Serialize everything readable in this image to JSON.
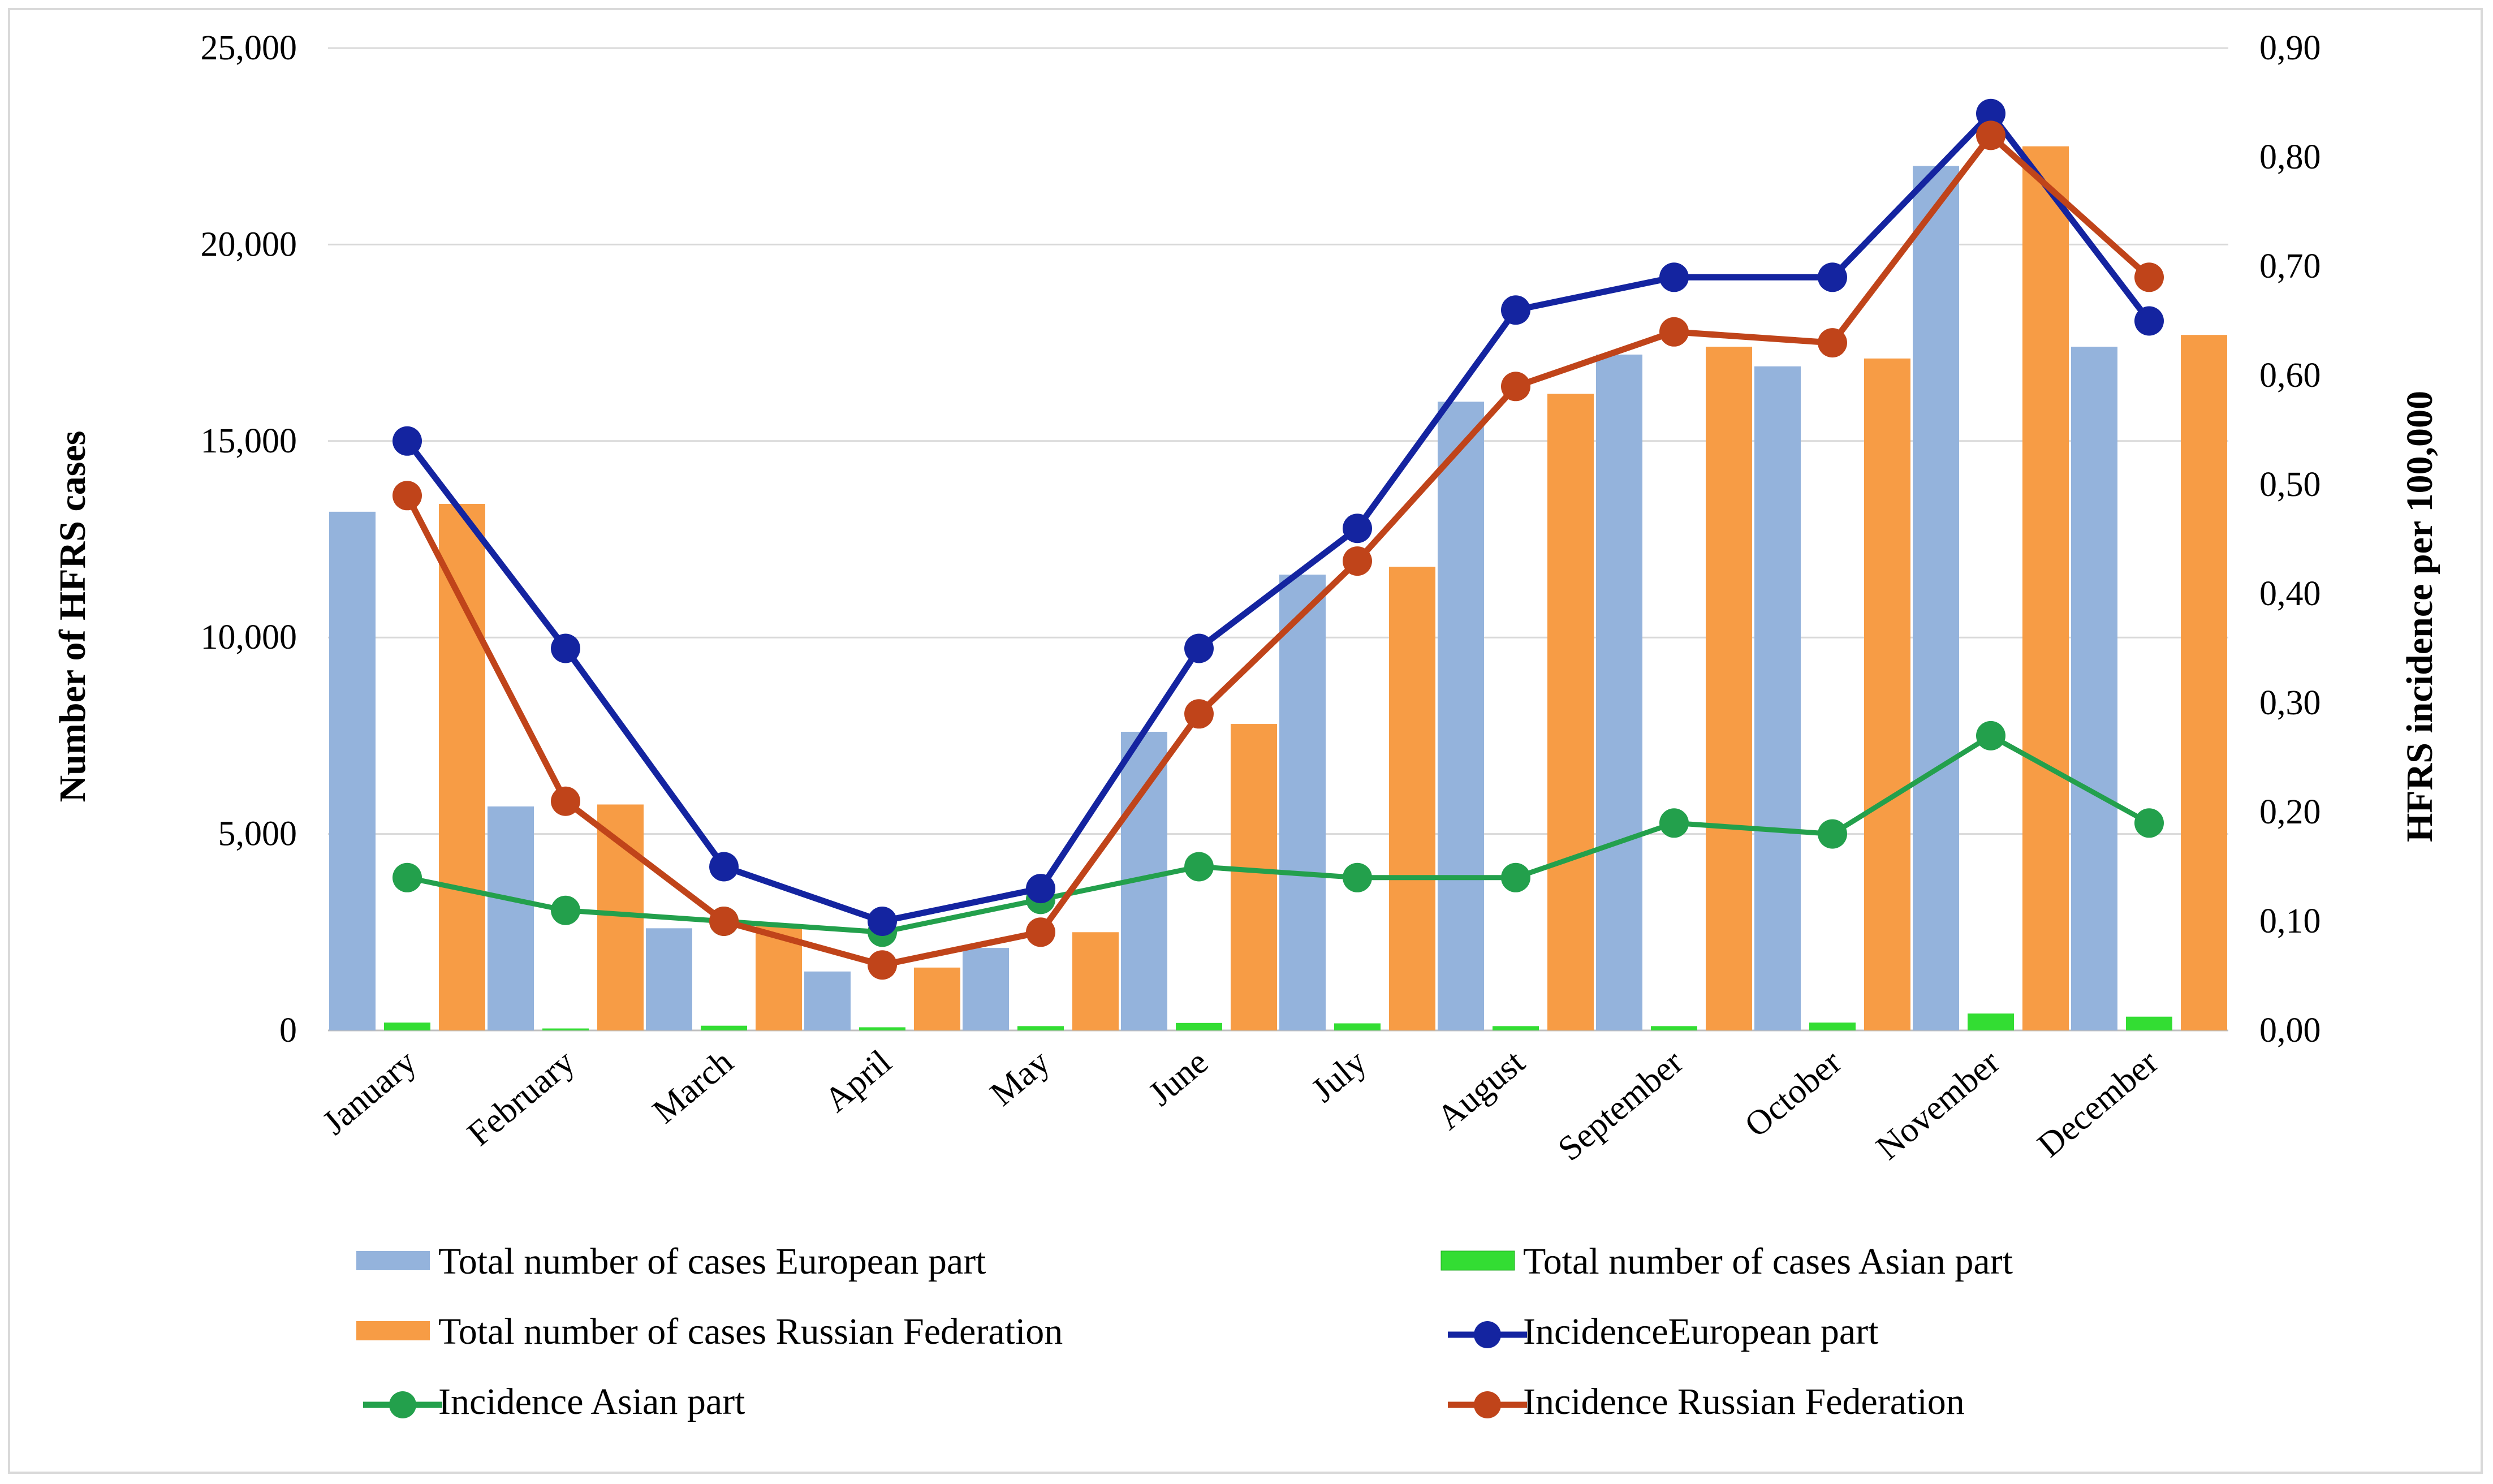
{
  "chart_data": {
    "type": "bar",
    "categories": [
      "January",
      "February",
      "March",
      "April",
      "May",
      "June",
      "July",
      "August",
      "September",
      "October",
      "November",
      "December"
    ],
    "bar_series": [
      {
        "name": "Total number of cases European part",
        "color": "#94b3dc",
        "values": [
          13200,
          5700,
          2600,
          1500,
          2100,
          7600,
          11600,
          16000,
          17200,
          16900,
          22000,
          17400
        ]
      },
      {
        "name": "Total number of cases Asian part",
        "color": "#33dd33",
        "values": [
          200,
          50,
          120,
          80,
          110,
          190,
          180,
          110,
          110,
          200,
          430,
          350
        ]
      },
      {
        "name": "Total number of cases Russian Federation",
        "color": "#f79c45",
        "values": [
          13400,
          5750,
          2700,
          1600,
          2500,
          7800,
          11800,
          16200,
          17400,
          17100,
          22500,
          17700
        ]
      }
    ],
    "line_series": [
      {
        "name": "IncidenceEuropean part",
        "color": "#1424a0",
        "values": [
          0.54,
          0.35,
          0.15,
          0.1,
          0.13,
          0.35,
          0.46,
          0.66,
          0.69,
          0.69,
          0.84,
          0.65
        ]
      },
      {
        "name": "Incidence Asian part",
        "color": "#23a04c",
        "values": [
          0.14,
          0.11,
          0.1,
          0.09,
          0.12,
          0.15,
          0.14,
          0.14,
          0.19,
          0.18,
          0.27,
          0.19
        ]
      },
      {
        "name": "Incidence Russian Federation",
        "color": "#c0441a",
        "values": [
          0.49,
          0.21,
          0.1,
          0.06,
          0.09,
          0.29,
          0.43,
          0.59,
          0.64,
          0.63,
          0.82,
          0.69
        ]
      }
    ],
    "y_left": {
      "label": "Number of HFRS cases",
      "min": 0,
      "max": 25000,
      "ticks": [
        "0",
        "5,000",
        "10,000",
        "15,000",
        "20,000",
        "25,000"
      ]
    },
    "y_right": {
      "label": "HFRS incidence per 100,000",
      "min": 0,
      "max": 0.9,
      "ticks": [
        "0,00",
        "0,10",
        "0,20",
        "0,30",
        "0,40",
        "0,50",
        "0,60",
        "0,70",
        "0,80",
        "0,90"
      ]
    },
    "grid": true,
    "legend_position": "bottom"
  },
  "legend": [
    {
      "label": "Total number of cases European part",
      "kind": "bar",
      "color": "#94b3dc"
    },
    {
      "label": "Total number of cases Asian part",
      "kind": "bar",
      "color": "#33dd33"
    },
    {
      "label": "Total number of cases Russian Federation",
      "kind": "bar",
      "color": "#f79c45"
    },
    {
      "label": "IncidenceEuropean part",
      "kind": "line",
      "color": "#1424a0"
    },
    {
      "label": "Incidence Asian part",
      "kind": "line",
      "color": "#23a04c"
    },
    {
      "label": "Incidence Russian Federation",
      "kind": "line",
      "color": "#c0441a"
    }
  ]
}
